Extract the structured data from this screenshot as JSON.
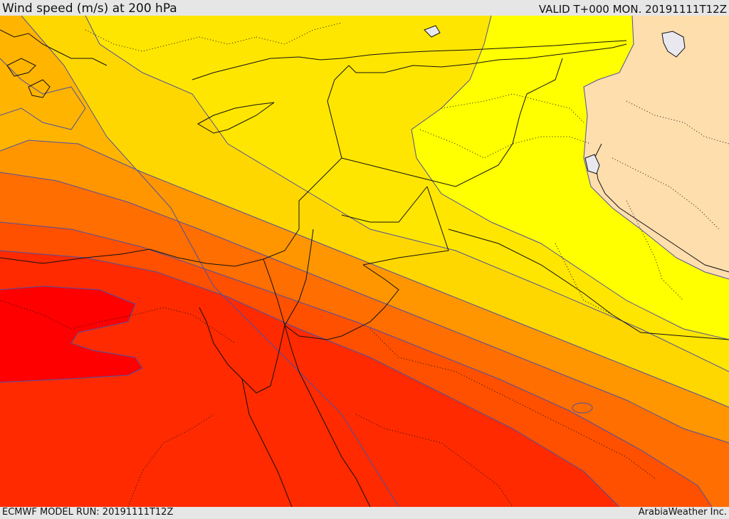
{
  "header": {
    "title": "Wind speed (m/s) at 200 hPa",
    "valid_time": "VALID T+000 MON. 20191111T12Z"
  },
  "footer": {
    "model_run": "ECMWF MODEL RUN: 20191111T12Z",
    "credit": "ArabiaWeather Inc."
  },
  "map": {
    "bands": [
      {
        "level": 1,
        "color": "#ffffff"
      },
      {
        "level": 2,
        "color": "#ffdead"
      },
      {
        "level": 3,
        "color": "#ffff00"
      },
      {
        "level": 4,
        "color": "#ffe600"
      },
      {
        "level": 5,
        "color": "#ffd700"
      },
      {
        "level": 6,
        "color": "#ffb400"
      },
      {
        "level": 7,
        "color": "#ff9600"
      },
      {
        "level": 8,
        "color": "#ff6e00"
      },
      {
        "level": 9,
        "color": "#ff5000"
      },
      {
        "level": 10,
        "color": "#ff2a00"
      },
      {
        "level": 11,
        "color": "#ff0000"
      }
    ],
    "colors": {
      "contour": "#5050a0",
      "coast": "#111111",
      "lake": "#e8e8ee"
    }
  }
}
